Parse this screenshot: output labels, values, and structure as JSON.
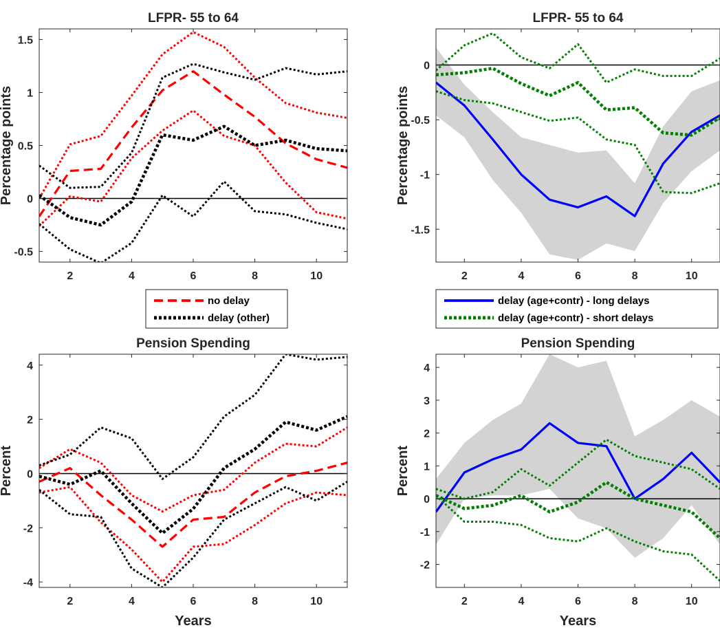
{
  "chart_data": [
    {
      "id": "tl",
      "type": "line",
      "title": "LFPR- 55 to 64",
      "xlabel": "",
      "ylabel": "Percentage points",
      "xlim": [
        1,
        11
      ],
      "ylim": [
        -0.6,
        1.6
      ],
      "xticks": [
        2,
        4,
        6,
        8,
        10
      ],
      "yticks": [
        -0.5,
        0,
        0.5,
        1,
        1.5
      ],
      "ytick_labels": [
        "-0.5",
        "0",
        "0.5",
        "1",
        "1.5"
      ],
      "zero_line": true,
      "x": [
        1,
        2,
        3,
        4,
        5,
        6,
        7,
        8,
        9,
        10,
        11
      ],
      "series": [
        {
          "name": "no delay",
          "color": "#ff0000",
          "style": "dashed",
          "values": [
            -0.17,
            0.26,
            0.28,
            0.67,
            1.02,
            1.2,
            0.98,
            0.77,
            0.52,
            0.37,
            0.29
          ]
        },
        {
          "color": "#ff0000",
          "style": "dotted",
          "values": [
            0.0,
            0.51,
            0.59,
            0.97,
            1.36,
            1.57,
            1.43,
            1.14,
            0.9,
            0.81,
            0.76
          ]
        },
        {
          "color": "#ff0000",
          "style": "dotted",
          "values": [
            -0.26,
            0.02,
            -0.03,
            0.38,
            0.64,
            0.83,
            0.59,
            0.5,
            0.15,
            -0.13,
            -0.19
          ]
        },
        {
          "name": "delay (other)",
          "color": "#000000",
          "style": "dotted-thick",
          "values": [
            0.03,
            -0.18,
            -0.25,
            -0.03,
            0.6,
            0.55,
            0.68,
            0.5,
            0.55,
            0.47,
            0.45
          ]
        },
        {
          "color": "#000000",
          "style": "dotted",
          "values": [
            0.31,
            0.1,
            0.11,
            0.43,
            1.14,
            1.27,
            1.19,
            1.12,
            1.23,
            1.17,
            1.2
          ]
        },
        {
          "color": "#000000",
          "style": "dotted",
          "values": [
            -0.24,
            -0.48,
            -0.61,
            -0.42,
            0.03,
            -0.17,
            0.16,
            -0.12,
            -0.15,
            -0.23,
            -0.29
          ]
        }
      ],
      "legend": {
        "placement": "below",
        "entries": [
          {
            "label": "no delay",
            "color": "#ff0000",
            "style": "dashed"
          },
          {
            "label": "delay (other)",
            "color": "#000000",
            "style": "dotted-thick"
          }
        ]
      }
    },
    {
      "id": "tr",
      "type": "line",
      "title": "LFPR- 55 to 64",
      "xlabel": "",
      "ylabel": "Percentage points",
      "xlim": [
        1,
        11
      ],
      "ylim": [
        -1.8,
        0.33
      ],
      "xticks": [
        2,
        4,
        6,
        8,
        10
      ],
      "yticks": [
        -1.5,
        -1,
        -0.5,
        0
      ],
      "ytick_labels": [
        "-1.5",
        "-1",
        "-0.5",
        "0"
      ],
      "zero_line": true,
      "x": [
        1,
        2,
        3,
        4,
        5,
        6,
        7,
        8,
        9,
        10,
        11
      ],
      "band": {
        "color": "#d3d3d3",
        "upper": [
          0.16,
          -0.18,
          -0.43,
          -0.66,
          -0.73,
          -0.8,
          -0.78,
          -1.08,
          -0.56,
          -0.24,
          -0.14
        ],
        "lower": [
          -0.46,
          -0.66,
          -1.05,
          -1.35,
          -1.73,
          -1.78,
          -1.63,
          -1.7,
          -1.26,
          -0.97,
          -0.78
        ]
      },
      "series": [
        {
          "name": "delay (age+contr) - long delays",
          "color": "#0000ff",
          "style": "solid",
          "values": [
            -0.16,
            -0.37,
            -0.68,
            -1.0,
            -1.23,
            -1.3,
            -1.2,
            -1.38,
            -0.9,
            -0.61,
            -0.46
          ]
        },
        {
          "name": "delay (age+contr) - short delays",
          "color": "#008000",
          "style": "dotted-thick",
          "values": [
            -0.09,
            -0.07,
            -0.03,
            -0.17,
            -0.28,
            -0.16,
            -0.41,
            -0.39,
            -0.62,
            -0.64,
            -0.48
          ]
        },
        {
          "color": "#008000",
          "style": "dotted",
          "values": [
            -0.05,
            0.18,
            0.29,
            0.07,
            -0.03,
            0.19,
            -0.16,
            -0.04,
            -0.1,
            -0.1,
            0.06
          ]
        },
        {
          "color": "#008000",
          "style": "dotted",
          "values": [
            -0.24,
            -0.32,
            -0.35,
            -0.43,
            -0.51,
            -0.48,
            -0.68,
            -0.73,
            -1.16,
            -1.17,
            -1.08
          ]
        }
      ],
      "legend": {
        "placement": "below",
        "entries": [
          {
            "label": "delay (age+contr) - long delays",
            "color": "#0000ff",
            "style": "solid"
          },
          {
            "label": "delay (age+contr) - short delays",
            "color": "#008000",
            "style": "dotted-thick"
          }
        ]
      }
    },
    {
      "id": "bl",
      "type": "line",
      "title": "Pension Spending",
      "xlabel": "Years",
      "ylabel": "Percent",
      "xlim": [
        1,
        11
      ],
      "ylim": [
        -4.2,
        4.4
      ],
      "xticks": [
        2,
        4,
        6,
        8,
        10
      ],
      "yticks": [
        -4,
        -2,
        0,
        2,
        4
      ],
      "ytick_labels": [
        "-4",
        "-2",
        "0",
        "2",
        "4"
      ],
      "zero_line": true,
      "x": [
        1,
        2,
        3,
        4,
        5,
        6,
        7,
        8,
        9,
        10,
        11
      ],
      "series": [
        {
          "color": "#ff0000",
          "style": "dashed",
          "values": [
            -0.3,
            0.2,
            -0.8,
            -1.7,
            -2.7,
            -1.7,
            -1.6,
            -0.7,
            -0.1,
            0.1,
            0.4
          ]
        },
        {
          "color": "#ff0000",
          "style": "dotted",
          "values": [
            0.2,
            0.9,
            0.4,
            -0.8,
            -1.4,
            -0.8,
            -0.6,
            0.4,
            1.1,
            1.0,
            1.7
          ]
        },
        {
          "color": "#ff0000",
          "style": "dotted",
          "values": [
            -0.7,
            -0.5,
            -1.8,
            -2.8,
            -4.0,
            -2.7,
            -2.6,
            -1.9,
            -1.1,
            -0.7,
            -0.8
          ]
        },
        {
          "color": "#000000",
          "style": "dotted-thick",
          "values": [
            -0.1,
            -0.4,
            0.1,
            -1.1,
            -2.2,
            -1.3,
            0.2,
            0.9,
            1.9,
            1.6,
            2.1
          ]
        },
        {
          "color": "#000000",
          "style": "dotted",
          "values": [
            0.3,
            0.7,
            1.7,
            1.3,
            -0.2,
            0.6,
            2.1,
            2.9,
            4.4,
            4.2,
            4.3
          ]
        },
        {
          "color": "#000000",
          "style": "dotted",
          "values": [
            -0.6,
            -1.5,
            -1.6,
            -3.5,
            -4.2,
            -3.1,
            -1.7,
            -1.1,
            -0.5,
            -1.0,
            -0.3
          ]
        }
      ]
    },
    {
      "id": "br",
      "type": "line",
      "title": "Pension Spending",
      "xlabel": "Years",
      "ylabel": "Percent",
      "xlim": [
        1,
        11
      ],
      "ylim": [
        -2.7,
        4.4
      ],
      "xticks": [
        2,
        4,
        6,
        8,
        10
      ],
      "yticks": [
        -2,
        -1,
        0,
        1,
        2,
        3,
        4
      ],
      "ytick_labels": [
        "-2",
        "-1",
        "0",
        "1",
        "2",
        "3",
        "4"
      ],
      "zero_line": true,
      "x": [
        1,
        2,
        3,
        4,
        5,
        6,
        7,
        8,
        9,
        10,
        11
      ],
      "band": {
        "color": "#d3d3d3",
        "upper": [
          0.6,
          1.7,
          2.4,
          2.9,
          4.4,
          4.0,
          4.2,
          1.9,
          2.4,
          3.0,
          2.5
        ]
      },
      "band_lower": [
        -1.4,
        0.0,
        0.1,
        0.1,
        0.3,
        -0.6,
        -0.9,
        -1.8,
        -1.2,
        -0.2,
        -1.4
      ],
      "series": [
        {
          "color": "#0000ff",
          "style": "solid",
          "values": [
            -0.4,
            0.8,
            1.2,
            1.5,
            2.3,
            1.7,
            1.6,
            0.0,
            0.6,
            1.4,
            0.5
          ]
        },
        {
          "color": "#008000",
          "style": "dotted-thick",
          "values": [
            0.1,
            -0.3,
            -0.2,
            0.1,
            -0.4,
            -0.1,
            0.5,
            0.0,
            -0.2,
            -0.4,
            -1.2
          ]
        },
        {
          "color": "#008000",
          "style": "dotted",
          "values": [
            0.3,
            0.0,
            0.2,
            0.9,
            0.4,
            1.1,
            1.8,
            1.3,
            1.1,
            0.9,
            0.3
          ]
        },
        {
          "color": "#008000",
          "style": "dotted",
          "values": [
            0.1,
            -0.7,
            -0.7,
            -0.8,
            -1.2,
            -1.3,
            -0.9,
            -1.3,
            -1.6,
            -1.7,
            -2.5
          ]
        }
      ]
    }
  ]
}
